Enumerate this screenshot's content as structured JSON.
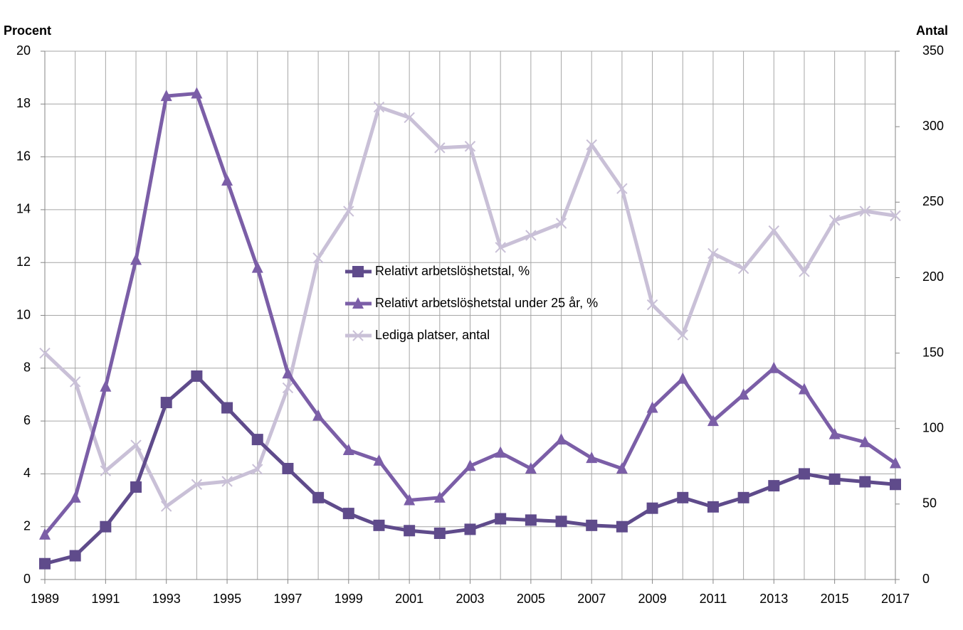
{
  "chart_data": {
    "type": "line",
    "y_label": "Procent",
    "y2_label": "Antal",
    "x": [
      1989,
      1990,
      1991,
      1992,
      1993,
      1994,
      1995,
      1996,
      1997,
      1998,
      1999,
      2000,
      2001,
      2002,
      2003,
      2004,
      2005,
      2006,
      2007,
      2008,
      2009,
      2010,
      2011,
      2012,
      2013,
      2014,
      2015,
      2016,
      2017
    ],
    "xlim": [
      1989,
      2017
    ],
    "xticks": [
      1989,
      1991,
      1993,
      1995,
      1997,
      1999,
      2001,
      2003,
      2005,
      2007,
      2009,
      2011,
      2013,
      2015,
      2017
    ],
    "ylim": [
      0,
      20
    ],
    "yticks": [
      0,
      2,
      4,
      6,
      8,
      10,
      12,
      14,
      16,
      18,
      20
    ],
    "y2lim": [
      0,
      350
    ],
    "y2ticks": [
      0,
      50,
      100,
      150,
      200,
      250,
      300,
      350
    ],
    "grid": true,
    "series": [
      {
        "name": "Relativt arbetslöshetstal, %",
        "color": "#5f4b8b",
        "marker": "square",
        "values": [
          0.6,
          0.9,
          2.0,
          3.5,
          6.7,
          7.7,
          6.5,
          5.3,
          4.2,
          3.1,
          2.5,
          2.05,
          1.85,
          1.75,
          1.9,
          2.3,
          2.25,
          2.2,
          2.05,
          2.0,
          2.7,
          3.1,
          2.75,
          3.1,
          3.55,
          4.0,
          3.8,
          3.7,
          3.6
        ]
      },
      {
        "name": "Relativt arbetslöshetstal under 25 år, %",
        "color": "#7b5ea7",
        "marker": "triangle",
        "values": [
          1.7,
          3.1,
          7.3,
          12.1,
          18.3,
          18.4,
          15.1,
          11.8,
          7.8,
          6.2,
          4.9,
          4.5,
          3.0,
          3.1,
          4.3,
          4.8,
          4.2,
          5.3,
          4.6,
          4.2,
          6.5,
          7.6,
          6.0,
          7.0,
          8.0,
          7.2,
          5.5,
          5.2,
          4.4
        ]
      },
      {
        "name": "Lediga platser, antal",
        "color": "#c9c0d7",
        "marker": "x",
        "axis": "y2",
        "values": [
          150,
          131,
          72,
          89,
          48.5,
          63,
          65,
          73,
          127,
          213,
          244,
          313,
          306,
          286,
          287,
          220,
          228,
          236,
          288,
          259,
          182,
          162,
          216,
          206,
          231,
          204,
          238,
          244,
          241
        ]
      }
    ]
  }
}
